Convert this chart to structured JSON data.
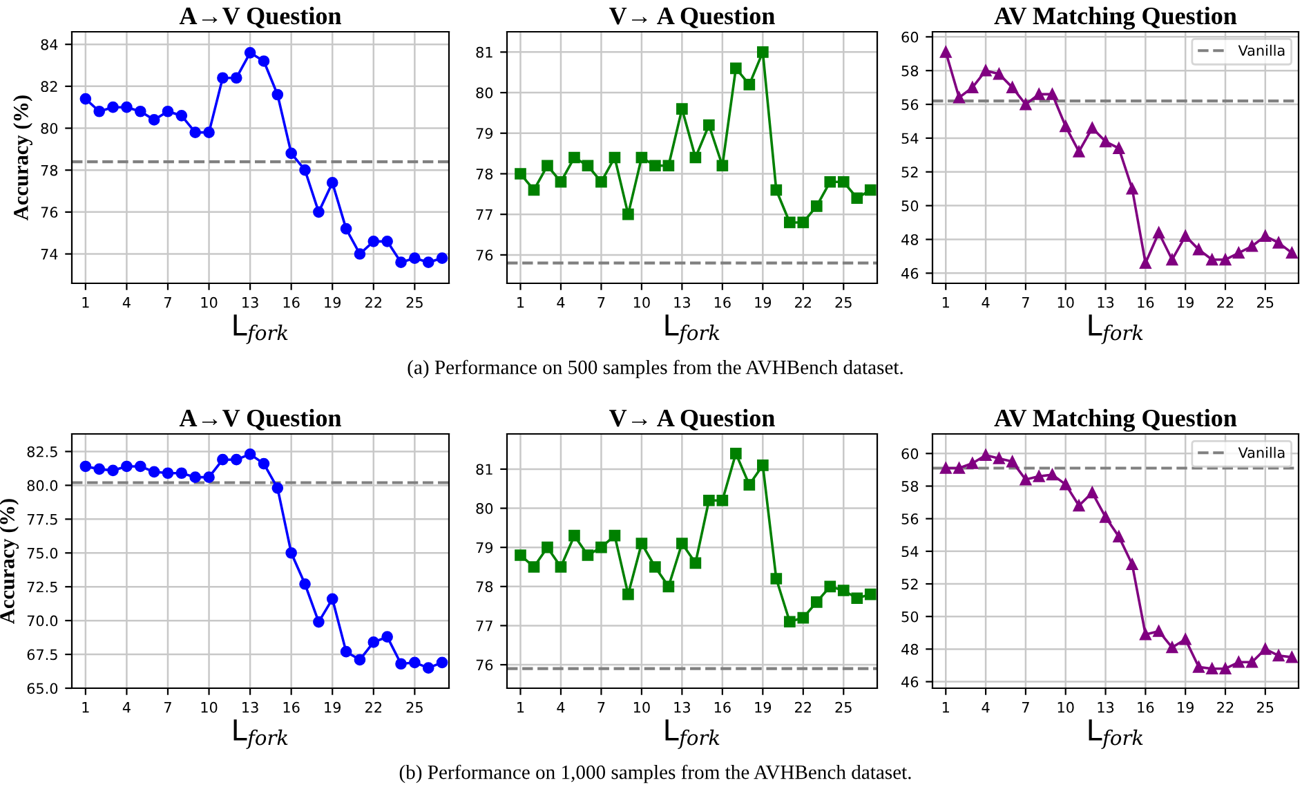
{
  "chart_data": [
    {
      "type": "line",
      "title": "A→V Question",
      "xlabel": "L$_{fork}$",
      "ylabel": "Accuracy (%)",
      "x": [
        1,
        2,
        3,
        4,
        5,
        6,
        7,
        8,
        9,
        10,
        11,
        12,
        13,
        14,
        15,
        16,
        17,
        18,
        19,
        20,
        21,
        22,
        23,
        24,
        25,
        26,
        27
      ],
      "xlim": [
        0,
        27.5
      ],
      "xticks": [
        1,
        4,
        7,
        10,
        13,
        16,
        19,
        22,
        25
      ],
      "ylim": [
        72.6,
        84.6
      ],
      "yticks": [
        74,
        76,
        78,
        80,
        82,
        84
      ],
      "grid": true,
      "marker": "circle",
      "series": [
        {
          "color": "#0000ff",
          "values": [
            81.4,
            80.8,
            81.0,
            81.0,
            80.8,
            80.4,
            80.8,
            80.6,
            79.8,
            79.8,
            82.4,
            82.4,
            83.6,
            83.2,
            81.6,
            78.8,
            78.0,
            76.0,
            77.4,
            75.2,
            74.0,
            74.6,
            74.6,
            73.6,
            73.8,
            73.6,
            73.8
          ]
        }
      ],
      "ref_lines": [
        {
          "axis": "y",
          "value": 78.4,
          "color": "#808080",
          "line_style": "dashed"
        }
      ],
      "annotations": [
        "(a) Performance on 500 samples from the AVHBench dataset."
      ]
    },
    {
      "type": "line",
      "title": "V→ A Question",
      "xlabel": "L$_{fork}$",
      "x": [
        1,
        2,
        3,
        4,
        5,
        6,
        7,
        8,
        9,
        10,
        11,
        12,
        13,
        14,
        15,
        16,
        17,
        18,
        19,
        20,
        21,
        22,
        23,
        24,
        25,
        26,
        27
      ],
      "xlim": [
        0,
        27.5
      ],
      "xticks": [
        1,
        4,
        7,
        10,
        13,
        16,
        19,
        22,
        25
      ],
      "ylim": [
        75.3,
        81.5
      ],
      "yticks": [
        76,
        77,
        78,
        79,
        80,
        81
      ],
      "grid": true,
      "marker": "square",
      "series": [
        {
          "color": "#008000",
          "values": [
            78.0,
            77.6,
            78.2,
            77.8,
            78.4,
            78.2,
            77.8,
            78.4,
            77.0,
            78.4,
            78.2,
            78.2,
            79.6,
            78.4,
            79.2,
            78.2,
            80.6,
            80.2,
            81.0,
            77.6,
            76.8,
            76.8,
            77.2,
            77.8,
            77.8,
            77.4,
            77.6
          ]
        }
      ],
      "ref_lines": [
        {
          "axis": "y",
          "value": 75.8,
          "color": "#808080",
          "line_style": "dashed"
        }
      ]
    },
    {
      "type": "line",
      "title": "AV Matching Question",
      "xlabel": "L$_{fork}$",
      "x": [
        1,
        2,
        3,
        4,
        5,
        6,
        7,
        8,
        9,
        10,
        11,
        12,
        13,
        14,
        15,
        16,
        17,
        18,
        19,
        20,
        21,
        22,
        23,
        24,
        25,
        26,
        27
      ],
      "xlim": [
        0,
        27.5
      ],
      "xticks": [
        1,
        4,
        7,
        10,
        13,
        16,
        19,
        22,
        25
      ],
      "ylim": [
        45.4,
        60.3
      ],
      "yticks": [
        46,
        48,
        50,
        52,
        54,
        56,
        58,
        60
      ],
      "grid": true,
      "marker": "triangle",
      "legend": "top right",
      "series": [
        {
          "color": "#800080",
          "values": [
            59.1,
            56.4,
            57.0,
            58.0,
            57.8,
            57.0,
            56.0,
            56.6,
            56.6,
            54.7,
            53.2,
            54.6,
            53.8,
            53.4,
            51.0,
            46.6,
            48.4,
            46.8,
            48.2,
            47.4,
            46.8,
            46.8,
            47.2,
            47.6,
            48.2,
            47.8,
            47.2
          ]
        }
      ],
      "ref_lines": [
        {
          "axis": "y",
          "value": 56.2,
          "label": "Vanilla",
          "color": "#808080",
          "line_style": "dashed"
        }
      ]
    },
    {
      "type": "line",
      "title": "A→V Question",
      "xlabel": "L$_{fork}$",
      "ylabel": "Accuracy (%)",
      "x": [
        1,
        2,
        3,
        4,
        5,
        6,
        7,
        8,
        9,
        10,
        11,
        12,
        13,
        14,
        15,
        16,
        17,
        18,
        19,
        20,
        21,
        22,
        23,
        24,
        25,
        26,
        27
      ],
      "xlim": [
        0,
        27.5
      ],
      "xticks": [
        1,
        4,
        7,
        10,
        13,
        16,
        19,
        22,
        25
      ],
      "ylim": [
        65.0,
        83.8
      ],
      "yticks": [
        {
          "value": 65,
          "label": "65.0"
        },
        {
          "value": 67.5,
          "label": "67.5"
        },
        {
          "value": 70,
          "label": "70.0"
        },
        {
          "value": 72.5,
          "label": "72.5"
        },
        {
          "value": 75,
          "label": "75.0"
        },
        {
          "value": 77.5,
          "label": "77.5"
        },
        {
          "value": 80,
          "label": "80.0"
        },
        {
          "value": 82.5,
          "label": "82.5"
        }
      ],
      "grid": true,
      "marker": "circle",
      "series": [
        {
          "color": "#0000ff",
          "values": [
            81.4,
            81.2,
            81.1,
            81.4,
            81.4,
            81.0,
            80.9,
            80.9,
            80.6,
            80.6,
            81.9,
            81.9,
            82.3,
            81.6,
            79.8,
            75.0,
            72.7,
            69.9,
            71.6,
            67.7,
            67.1,
            68.4,
            68.8,
            66.8,
            66.9,
            66.5,
            66.9
          ]
        }
      ],
      "ref_lines": [
        {
          "axis": "y",
          "value": 80.2,
          "color": "#808080",
          "line_style": "dashed"
        }
      ],
      "annotations": [
        "(b) Performance on 1,000 samples from the AVHBench dataset."
      ]
    },
    {
      "type": "line",
      "title": "V→ A Question",
      "xlabel": "L$_{fork}$",
      "x": [
        1,
        2,
        3,
        4,
        5,
        6,
        7,
        8,
        9,
        10,
        11,
        12,
        13,
        14,
        15,
        16,
        17,
        18,
        19,
        20,
        21,
        22,
        23,
        24,
        25,
        26,
        27
      ],
      "xlim": [
        0,
        27.5
      ],
      "xticks": [
        1,
        4,
        7,
        10,
        13,
        16,
        19,
        22,
        25
      ],
      "ylim": [
        75.4,
        81.9
      ],
      "yticks": [
        76,
        77,
        78,
        79,
        80,
        81
      ],
      "grid": true,
      "marker": "square",
      "series": [
        {
          "color": "#008000",
          "values": [
            78.8,
            78.5,
            79.0,
            78.5,
            79.3,
            78.8,
            79.0,
            79.3,
            77.8,
            79.1,
            78.5,
            78.0,
            79.1,
            78.6,
            80.2,
            80.2,
            81.4,
            80.6,
            81.1,
            78.2,
            77.1,
            77.2,
            77.6,
            78.0,
            77.9,
            77.7,
            77.8
          ]
        }
      ],
      "ref_lines": [
        {
          "axis": "y",
          "value": 75.9,
          "color": "#808080",
          "line_style": "dashed"
        }
      ]
    },
    {
      "type": "line",
      "title": "AV Matching Question",
      "xlabel": "L$_{fork}$",
      "x": [
        1,
        2,
        3,
        4,
        5,
        6,
        7,
        8,
        9,
        10,
        11,
        12,
        13,
        14,
        15,
        16,
        17,
        18,
        19,
        20,
        21,
        22,
        23,
        24,
        25,
        26,
        27
      ],
      "xlim": [
        0,
        27.5
      ],
      "xticks": [
        1,
        4,
        7,
        10,
        13,
        16,
        19,
        22,
        25
      ],
      "ylim": [
        45.6,
        61.2
      ],
      "yticks": [
        46,
        48,
        50,
        52,
        54,
        56,
        58,
        60
      ],
      "grid": true,
      "marker": "triangle",
      "legend": "top right",
      "series": [
        {
          "color": "#800080",
          "values": [
            59.1,
            59.1,
            59.4,
            59.9,
            59.7,
            59.5,
            58.4,
            58.6,
            58.7,
            58.1,
            56.8,
            57.6,
            56.1,
            54.9,
            53.2,
            48.9,
            49.1,
            48.1,
            48.6,
            46.9,
            46.8,
            46.8,
            47.2,
            47.2,
            48.0,
            47.6,
            47.5
          ]
        }
      ],
      "ref_lines": [
        {
          "axis": "y",
          "value": 59.1,
          "label": "Vanilla",
          "color": "#808080",
          "line_style": "dashed"
        }
      ]
    }
  ]
}
